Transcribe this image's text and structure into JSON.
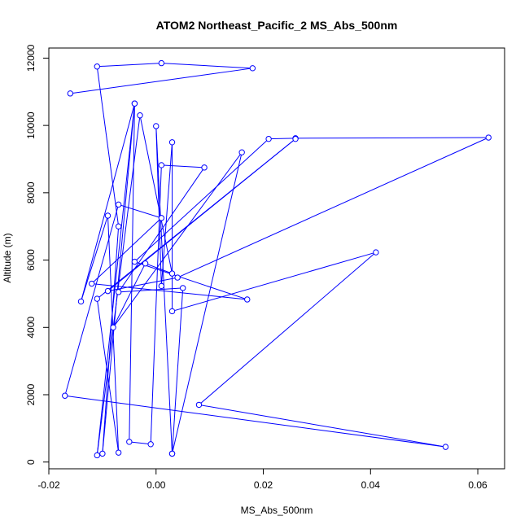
{
  "chart_data": {
    "type": "scatter",
    "title": "ATOM2 Northeast_Pacific_2 MS_Abs_500nm",
    "xlabel": "MS_Abs_500nm",
    "ylabel": "Altitude (m)",
    "xlim": [
      -0.02,
      0.065
    ],
    "ylim": [
      -200,
      12300
    ],
    "x_ticks": [
      -0.02,
      0.0,
      0.02,
      0.04,
      0.06
    ],
    "x_tick_labels": [
      "-0.02",
      "0.00",
      "0.02",
      "0.04",
      "0.06"
    ],
    "y_ticks": [
      0,
      2000,
      4000,
      6000,
      8000,
      10000,
      12000
    ],
    "y_tick_labels": [
      "0",
      "2000",
      "4000",
      "6000",
      "8000",
      "10000",
      "12000"
    ],
    "grid": false,
    "legend": "none",
    "series": [
      {
        "color": "#0000FF",
        "marker": "open-circle",
        "connected": true,
        "points": [
          {
            "x": -0.016,
            "y": 10950
          },
          {
            "x": 0.018,
            "y": 11700
          },
          {
            "x": 0.001,
            "y": 11850
          },
          {
            "x": -0.011,
            "y": 11750
          },
          {
            "x": -0.007,
            "y": 7000
          },
          {
            "x": -0.01,
            "y": 250
          },
          {
            "x": -0.004,
            "y": 10650
          },
          {
            "x": -0.011,
            "y": 200
          },
          {
            "x": -0.003,
            "y": 10300
          },
          {
            "x": 0.003,
            "y": 5600
          },
          {
            "x": -0.002,
            "y": 5900
          },
          {
            "x": -0.008,
            "y": 4000
          },
          {
            "x": 0.016,
            "y": 9200
          },
          {
            "x": 0.003,
            "y": 250
          },
          {
            "x": 0.0,
            "y": 9980
          },
          {
            "x": 0.001,
            "y": 5230
          },
          {
            "x": 0.003,
            "y": 9500
          },
          {
            "x": 0.003,
            "y": 4480
          },
          {
            "x": 0.041,
            "y": 6230
          },
          {
            "x": 0.008,
            "y": 1700
          },
          {
            "x": 0.054,
            "y": 450
          },
          {
            "x": -0.017,
            "y": 1970
          },
          {
            "x": -0.007,
            "y": 7650
          },
          {
            "x": 0.001,
            "y": 7250
          },
          {
            "x": -0.012,
            "y": 5300
          },
          {
            "x": 0.017,
            "y": 4830
          },
          {
            "x": -0.004,
            "y": 5950
          },
          {
            "x": 0.021,
            "y": 9600
          },
          {
            "x": 0.026,
            "y": 9620
          },
          {
            "x": 0.062,
            "y": 9640
          },
          {
            "x": 0.004,
            "y": 5480
          },
          {
            "x": -0.009,
            "y": 5080
          },
          {
            "x": 0.026,
            "y": 9600
          },
          {
            "x": -0.011,
            "y": 4850
          },
          {
            "x": -0.007,
            "y": 280
          },
          {
            "x": -0.009,
            "y": 7320
          },
          {
            "x": -0.014,
            "y": 4770
          },
          {
            "x": -0.004,
            "y": 10650
          },
          {
            "x": -0.005,
            "y": 600
          },
          {
            "x": -0.001,
            "y": 530
          },
          {
            "x": 0.001,
            "y": 8820
          },
          {
            "x": 0.009,
            "y": 8750
          },
          {
            "x": -0.007,
            "y": 5050
          },
          {
            "x": 0.005,
            "y": 5170
          },
          {
            "x": 0.003,
            "y": 250
          }
        ]
      }
    ]
  }
}
